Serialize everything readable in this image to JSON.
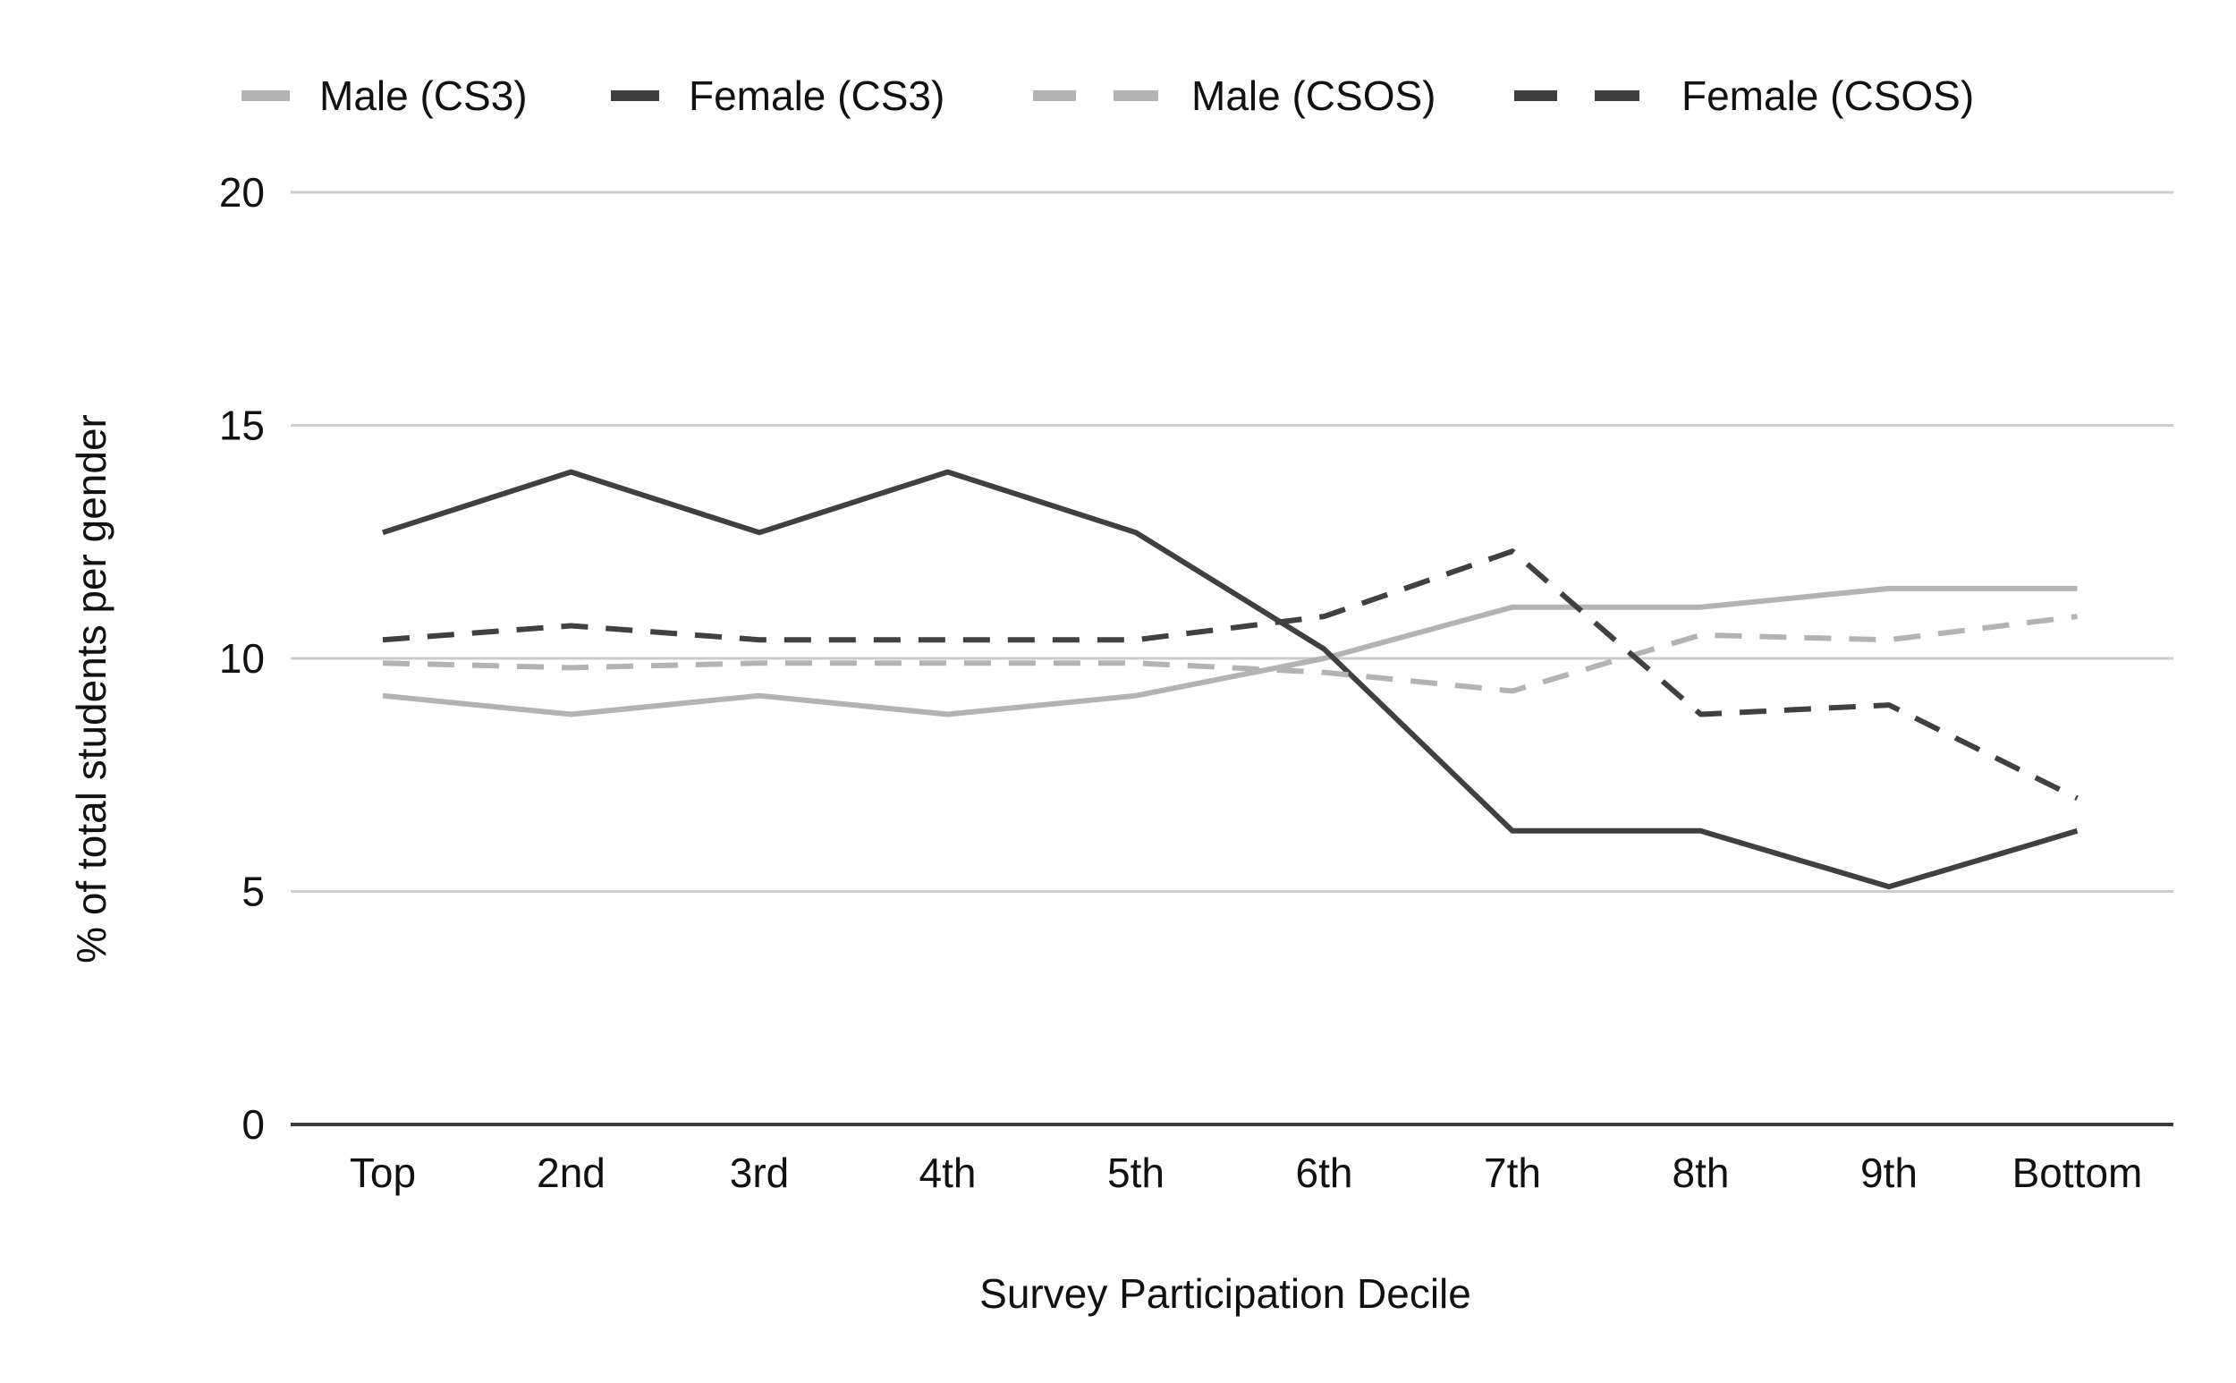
{
  "chart_data": {
    "type": "line",
    "categories": [
      "Top",
      "2nd",
      "3rd",
      "4th",
      "5th",
      "6th",
      "7th",
      "8th",
      "9th",
      "Bottom"
    ],
    "series": [
      {
        "name": "Male (CS3)",
        "dashed": false,
        "color": "#b3b3b3",
        "values": [
          9.2,
          8.8,
          9.2,
          8.8,
          9.2,
          10.0,
          11.1,
          11.1,
          11.5,
          11.5
        ]
      },
      {
        "name": "Female (CS3)",
        "dashed": false,
        "color": "#404040",
        "values": [
          12.7,
          14.0,
          12.7,
          14.0,
          12.7,
          10.2,
          6.3,
          6.3,
          5.1,
          6.3
        ]
      },
      {
        "name": "Male (CSOS)",
        "dashed": true,
        "color": "#b3b3b3",
        "values": [
          9.9,
          9.8,
          9.9,
          9.9,
          9.9,
          9.7,
          9.3,
          10.5,
          10.4,
          10.9
        ]
      },
      {
        "name": "Female (CSOS)",
        "dashed": true,
        "color": "#404040",
        "values": [
          10.4,
          10.7,
          10.4,
          10.4,
          10.4,
          10.9,
          12.3,
          8.8,
          9.0,
          7.0
        ]
      }
    ],
    "xlabel": "Survey Participation Decile",
    "ylabel": "% of total students per gender",
    "ylim": [
      0,
      20
    ],
    "yticks": [
      "0",
      "5",
      "10",
      "15",
      "20"
    ],
    "grid": true,
    "legend_position": "top"
  }
}
